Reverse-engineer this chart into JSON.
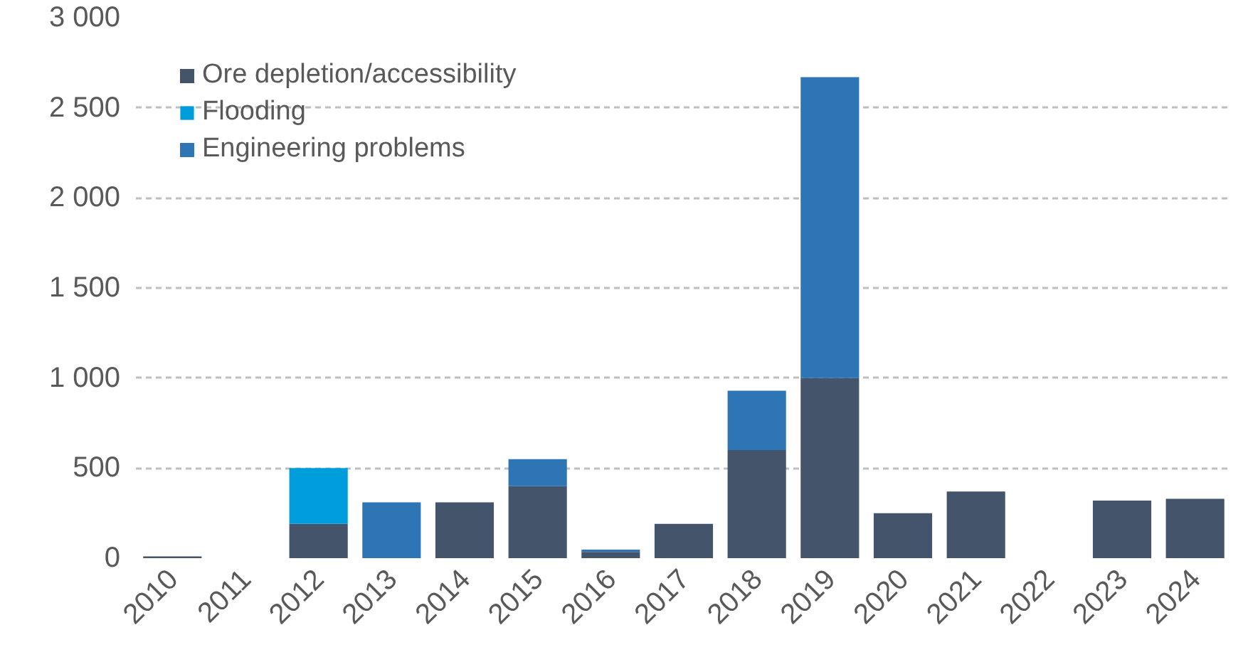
{
  "chart_data": {
    "type": "bar",
    "stacked": true,
    "categories": [
      "2010",
      "2011",
      "2012",
      "2013",
      "2014",
      "2015",
      "2016",
      "2017",
      "2018",
      "2019",
      "2020",
      "2021",
      "2022",
      "2023",
      "2024"
    ],
    "series": [
      {
        "name": "Ore depletion/accessibility",
        "color": "#44546a",
        "values": [
          10,
          null,
          190,
          null,
          310,
          400,
          35,
          190,
          600,
          1000,
          250,
          370,
          null,
          320,
          330
        ]
      },
      {
        "name": "Flooding",
        "color": "#009ddc",
        "values": [
          null,
          null,
          310,
          null,
          null,
          null,
          null,
          null,
          null,
          null,
          null,
          null,
          null,
          null,
          null
        ]
      },
      {
        "name": "Engineering problems",
        "color": "#2e75b6",
        "values": [
          null,
          null,
          null,
          310,
          null,
          150,
          12,
          null,
          330,
          1670,
          null,
          null,
          null,
          null,
          null
        ]
      }
    ],
    "ylim": [
      0,
      3000
    ],
    "yticks": [
      0,
      {
        "value": 500,
        "label": "500"
      },
      {
        "value": 1000,
        "label": "1 000"
      },
      {
        "value": 1500,
        "label": "1 500"
      },
      {
        "value": 2000,
        "label": "2 000"
      },
      {
        "value": 2500,
        "label": "2 500"
      },
      {
        "value": 3000,
        "label": "3 000"
      }
    ],
    "grid": "y",
    "legend": "top left"
  }
}
